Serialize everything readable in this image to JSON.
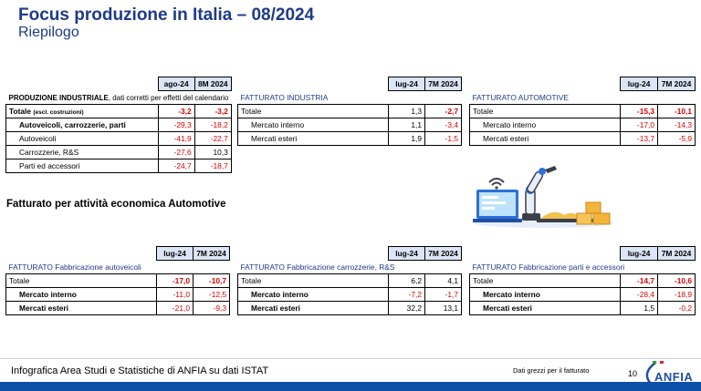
{
  "header": {
    "title": "Focus produzione in Italia – 08/2024",
    "subtitle": "Riepilogo"
  },
  "t1": {
    "col1": "ago-24",
    "col2": "8M 2024",
    "caption": "PRODUZIONE INDUSTRIALE",
    "caption_note": ", dati corretti per effetti del calendario",
    "total_label": "Totale",
    "total_note": "(escl. costruzioni)",
    "total_v1": "-3,2",
    "total_v2": "-3,2",
    "rows": [
      {
        "label": "Autoveicoli, carrozzerie, parti",
        "v1": "-29,3",
        "v2": "-18,2"
      },
      {
        "label": "Autoveicoli",
        "v1": "-41,9",
        "v2": "-22,7"
      },
      {
        "label": "Carrozzerie, R&S",
        "v1": "-27,6",
        "v2": "10,3"
      },
      {
        "label": "Parti ed accessori",
        "v1": "-24,7",
        "v2": "-18,7"
      }
    ]
  },
  "t2": {
    "col1": "lug-24",
    "col2": "7M 2024",
    "caption": "FATTURATO INDUSTRIA",
    "total_label": "Totale",
    "total_v1": "1,3",
    "total_v2": "-2,7",
    "rows": [
      {
        "label": "Mercato interno",
        "v1": "1,1",
        "v2": "-3,4"
      },
      {
        "label": "Mercati esteri",
        "v1": "1,9",
        "v2": "-1,5"
      }
    ]
  },
  "t3": {
    "col1": "lug-24",
    "col2": "7M 2024",
    "caption": "FATTURATO AUTOMOTIVE",
    "total_label": "Totale",
    "total_v1": "-15,3",
    "total_v2": "-10,1",
    "rows": [
      {
        "label": "Mercato interno",
        "v1": "-17,0",
        "v2": "-14,3"
      },
      {
        "label": "Mercati esteri",
        "v1": "-13,7",
        "v2": "-5,9"
      }
    ]
  },
  "section_heading": "Fatturato per attività economica Automotive",
  "t4": {
    "col1": "lug-24",
    "col2": "7M 2024",
    "caption": "FATTURATO Fabbricazione autoveicoli",
    "total_label": "Totale",
    "total_v1": "-17,0",
    "total_v2": "-10,7",
    "rows": [
      {
        "label": "Mercato interno",
        "v1": "-11,0",
        "v2": "-12,5"
      },
      {
        "label": "Mercati esteri",
        "v1": "-21,0",
        "v2": "-9,3"
      }
    ]
  },
  "t5": {
    "col1": "lug-24",
    "col2": "7M 2024",
    "caption": "FATTURATO Fabbricazione carrozzerie, R&S",
    "total_label": "Totale",
    "total_v1": "6,2",
    "total_v2": "4,1",
    "rows": [
      {
        "label": "Mercato interno",
        "v1": "-7,2",
        "v2": "-1,7"
      },
      {
        "label": "Mercati esteri",
        "v1": "32,2",
        "v2": "13,1"
      }
    ]
  },
  "t6": {
    "col1": "lug-24",
    "col2": "7M 2024",
    "caption": "FATTURATO Fabbricazione parti e accessori",
    "total_label": "Totale",
    "total_v1": "-14,7",
    "total_v2": "-10,6",
    "rows": [
      {
        "label": "Mercato interno",
        "v1": "-28,4",
        "v2": "-18,9"
      },
      {
        "label": "Mercati esteri",
        "v1": "1,5",
        "v2": "-0,2"
      }
    ]
  },
  "footer": {
    "text": "Infografica Area Studi e Statistiche di ANFIA su dati ISTAT",
    "note": "Dati grezzi per il fatturato",
    "page": "10",
    "logo": "ANFIA"
  },
  "colors": {
    "title": "#1f3a8a",
    "header_fill": "#dbe5f5",
    "negative": "#e00000",
    "footer_bar": "#0d4fa8"
  }
}
